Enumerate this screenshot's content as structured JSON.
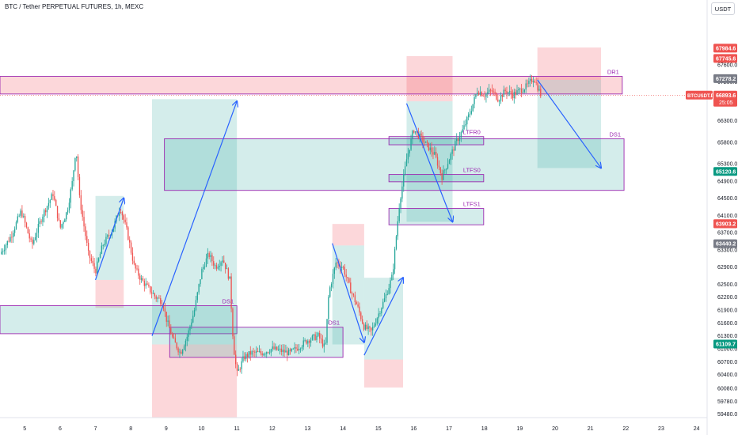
{
  "header": {
    "title": "BTC / Tether PERPETUAL FUTURES, 1h, MEXC",
    "currency_button": "USDT"
  },
  "colors": {
    "up": "#26a69a",
    "down": "#ef5350",
    "zone_purple": "#9c27b0",
    "supply_fill": "rgba(242,54,69,0.20)",
    "demand_fill": "rgba(38,166,154,0.20)",
    "arrow": "#2962ff"
  },
  "chart_data": {
    "type": "candlestick",
    "symbol": "BTCUSDT.P",
    "timeframe": "1h",
    "exchange": "MEXC",
    "x_ticks": [
      "5",
      "6",
      "7",
      "8",
      "9",
      "10",
      "11",
      "12",
      "13",
      "14",
      "15",
      "16",
      "17",
      "18",
      "19",
      "20",
      "21",
      "22",
      "23",
      "24"
    ],
    "y_ticks": [
      59480.0,
      59780.0,
      60080.0,
      60400.0,
      60700.0,
      61000.0,
      61300.0,
      61600.0,
      61900.0,
      62200.0,
      62500.0,
      62900.0,
      63300.0,
      63700.0,
      64100.0,
      64500.0,
      64900.0,
      65300.0,
      65800.0,
      66300.0,
      66800.0,
      67200.0,
      67600.0
    ],
    "ylim": [
      59400,
      68700
    ],
    "xlim": [
      4.3,
      24.3
    ],
    "price_badges": [
      {
        "label": "67984.6",
        "value": 67984.6,
        "color": "#ef5350"
      },
      {
        "label": "67745.6",
        "value": 67745.6,
        "color": "#ef5350"
      },
      {
        "label": "67278.2",
        "value": 67278.2,
        "color": "#787b86"
      },
      {
        "label": "66788.2",
        "value": 66788.2,
        "color": "#787b86"
      },
      {
        "label": "65120.6",
        "value": 65120.6,
        "color": "#089981"
      },
      {
        "label": "63907.8",
        "value": 63907.8,
        "color": "#ef5350"
      },
      {
        "label": "63903.2",
        "value": 63903.2,
        "color": "#ef5350"
      },
      {
        "label": "63440.2",
        "value": 63440.2,
        "color": "#787b86"
      },
      {
        "label": "61109.7",
        "value": 61109.7,
        "color": "#089981"
      }
    ],
    "last_price": {
      "symbol": "BTCUSDT.P",
      "price": "66893.6",
      "countdown": "25:05",
      "value": 66893.6,
      "color": "#ef5350"
    },
    "path": [
      [
        4.3,
        63200
      ],
      [
        4.6,
        63600
      ],
      [
        4.9,
        64200
      ],
      [
        5.2,
        63400
      ],
      [
        5.5,
        64100
      ],
      [
        5.8,
        64600
      ],
      [
        6.0,
        63800
      ],
      [
        6.2,
        64200
      ],
      [
        6.35,
        64900
      ],
      [
        6.45,
        65700
      ],
      [
        6.55,
        64500
      ],
      [
        6.8,
        63200
      ],
      [
        7.0,
        62800
      ],
      [
        7.2,
        63400
      ],
      [
        7.5,
        63800
      ],
      [
        7.7,
        64300
      ],
      [
        7.9,
        63700
      ],
      [
        8.1,
        62900
      ],
      [
        8.3,
        62600
      ],
      [
        8.5,
        62400
      ],
      [
        8.7,
        62200
      ],
      [
        8.9,
        62100
      ],
      [
        9.0,
        61700
      ],
      [
        9.2,
        61200
      ],
      [
        9.4,
        60900
      ],
      [
        9.6,
        61300
      ],
      [
        9.8,
        61900
      ],
      [
        10.0,
        62800
      ],
      [
        10.2,
        63200
      ],
      [
        10.4,
        62900
      ],
      [
        10.6,
        63100
      ],
      [
        10.8,
        62600
      ],
      [
        10.9,
        61100
      ],
      [
        11.0,
        60400
      ],
      [
        11.2,
        60800
      ],
      [
        11.4,
        60900
      ],
      [
        11.7,
        60900
      ],
      [
        12.0,
        61000
      ],
      [
        12.5,
        60900
      ],
      [
        13.0,
        61200
      ],
      [
        13.3,
        61300
      ],
      [
        13.5,
        61000
      ],
      [
        13.6,
        62300
      ],
      [
        13.8,
        63000
      ],
      [
        14.0,
        62900
      ],
      [
        14.2,
        62400
      ],
      [
        14.4,
        62000
      ],
      [
        14.6,
        61500
      ],
      [
        14.8,
        61400
      ],
      [
        15.0,
        61800
      ],
      [
        15.2,
        62200
      ],
      [
        15.4,
        62700
      ],
      [
        15.6,
        64400
      ],
      [
        15.8,
        65400
      ],
      [
        16.0,
        66100
      ],
      [
        16.2,
        65900
      ],
      [
        16.4,
        65700
      ],
      [
        16.6,
        65500
      ],
      [
        16.8,
        65000
      ],
      [
        17.0,
        65400
      ],
      [
        17.2,
        65800
      ],
      [
        17.4,
        66100
      ],
      [
        17.6,
        66500
      ],
      [
        17.8,
        67000
      ],
      [
        18.0,
        66900
      ],
      [
        18.2,
        67000
      ],
      [
        18.4,
        66800
      ],
      [
        18.6,
        67000
      ],
      [
        18.8,
        66900
      ],
      [
        19.0,
        67000
      ],
      [
        19.2,
        67100
      ],
      [
        19.4,
        67300
      ],
      [
        19.6,
        66890
      ]
    ],
    "zones": [
      {
        "kind": "supply",
        "label": "DR1",
        "x0": 4.3,
        "x1": 21.9,
        "y0": 66920,
        "y1": 67330,
        "outline": true
      },
      {
        "kind": "demand",
        "label": "DS1",
        "x0": 8.95,
        "x1": 21.95,
        "y0": 64680,
        "y1": 65880,
        "outline": true
      },
      {
        "kind": "demand",
        "label": "DS1",
        "x0": 4.3,
        "x1": 11.0,
        "y0": 61350,
        "y1": 62000,
        "outline": true
      },
      {
        "kind": "demand",
        "label": "DS1",
        "x0": 9.1,
        "x1": 14.0,
        "y0": 60800,
        "y1": 61500,
        "outline": true
      },
      {
        "kind": "demand",
        "label": "LTFR0",
        "x0": 15.3,
        "x1": 17.98,
        "y0": 65740,
        "y1": 65930,
        "outline": true
      },
      {
        "kind": "demand",
        "label": "LTFS0",
        "x0": 15.3,
        "x1": 17.98,
        "y0": 64880,
        "y1": 65050,
        "outline": true
      },
      {
        "kind": "demand",
        "label": "LTFS1",
        "x0": 15.3,
        "x1": 17.98,
        "y0": 63880,
        "y1": 64260,
        "outline": true
      }
    ],
    "boxes": [
      {
        "kind": "supply",
        "x0": 7.0,
        "x1": 7.8,
        "y0": 61950,
        "y1": 62600
      },
      {
        "kind": "demand",
        "x0": 7.0,
        "x1": 7.8,
        "y0": 62600,
        "y1": 64550
      },
      {
        "kind": "demand",
        "x0": 8.6,
        "x1": 11.0,
        "y0": 61100,
        "y1": 66800
      },
      {
        "kind": "supply",
        "x0": 8.6,
        "x1": 11.0,
        "y0": 59400,
        "y1": 61100
      },
      {
        "kind": "supply",
        "x0": 13.7,
        "x1": 14.6,
        "y0": 63400,
        "y1": 63900
      },
      {
        "kind": "demand",
        "x0": 13.7,
        "x1": 14.6,
        "y0": 61100,
        "y1": 63400
      },
      {
        "kind": "demand",
        "x0": 14.6,
        "x1": 15.7,
        "y0": 60750,
        "y1": 62650
      },
      {
        "kind": "supply",
        "x0": 14.6,
        "x1": 15.7,
        "y0": 60100,
        "y1": 60750
      },
      {
        "kind": "supply",
        "x0": 15.8,
        "x1": 17.1,
        "y0": 66750,
        "y1": 67800
      },
      {
        "kind": "demand",
        "x0": 15.8,
        "x1": 17.1,
        "y0": 63950,
        "y1": 66750
      },
      {
        "kind": "supply",
        "x0": 19.5,
        "x1": 21.3,
        "y0": 67250,
        "y1": 68000
      },
      {
        "kind": "demand",
        "x0": 19.5,
        "x1": 21.3,
        "y0": 65200,
        "y1": 67250
      }
    ],
    "arrows": [
      [
        [
          7.0,
          62600
        ],
        [
          7.8,
          64500
        ]
      ],
      [
        [
          8.6,
          61300
        ],
        [
          11.0,
          66750
        ]
      ],
      [
        [
          13.7,
          63450
        ],
        [
          14.6,
          61150
        ]
      ],
      [
        [
          14.6,
          60850
        ],
        [
          15.7,
          62650
        ]
      ],
      [
        [
          15.8,
          66700
        ],
        [
          17.1,
          63950
        ]
      ],
      [
        [
          19.5,
          67250
        ],
        [
          21.3,
          65200
        ]
      ]
    ]
  }
}
